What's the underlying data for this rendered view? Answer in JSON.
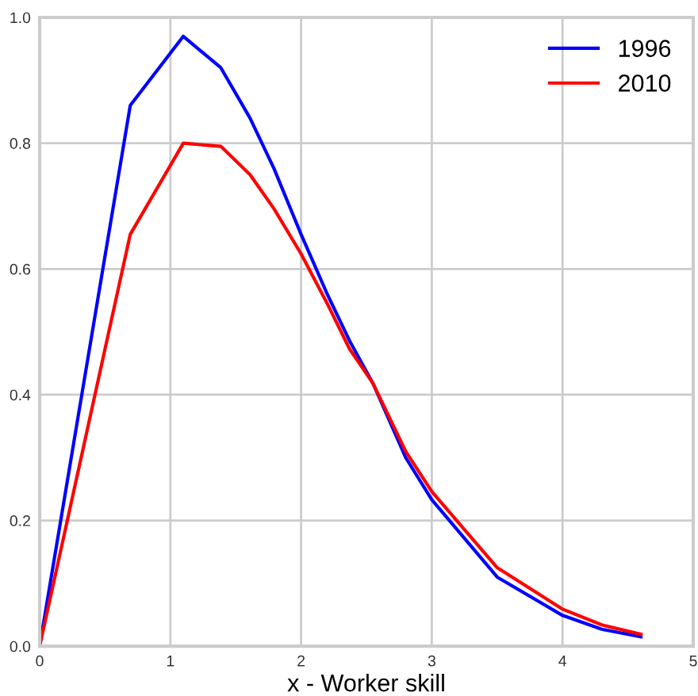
{
  "chart_data": {
    "type": "line",
    "xlabel": "x - Worker skill",
    "series": [
      {
        "name": "1996",
        "color": "#0000ff",
        "x": [
          0,
          0.693,
          1.099,
          1.386,
          1.609,
          1.792,
          2.0,
          2.2,
          2.37,
          2.55,
          2.8,
          3.0,
          3.5,
          4.0,
          4.3,
          4.6
        ],
        "values": [
          0,
          0.86,
          0.97,
          0.92,
          0.84,
          0.76,
          0.655,
          0.56,
          0.486,
          0.418,
          0.3,
          0.233,
          0.11,
          0.049,
          0.027,
          0.015
        ]
      },
      {
        "name": "2010",
        "color": "#ff0000",
        "x": [
          0,
          0.693,
          1.099,
          1.386,
          1.609,
          1.792,
          2.0,
          2.2,
          2.37,
          2.55,
          2.8,
          3.0,
          3.5,
          4.0,
          4.3,
          4.6
        ],
        "values": [
          0,
          0.655,
          0.8,
          0.795,
          0.75,
          0.696,
          0.624,
          0.545,
          0.473,
          0.418,
          0.31,
          0.246,
          0.125,
          0.059,
          0.034,
          0.019
        ]
      }
    ],
    "xlim": [
      0,
      5
    ],
    "ylim": [
      0,
      1.0
    ],
    "xticks": [
      0,
      1,
      2,
      3,
      4,
      5
    ],
    "yticks": [
      {
        "value": 0,
        "label": "0.0"
      },
      {
        "value": 0.2,
        "label": "0.2"
      },
      {
        "value": 0.4,
        "label": "0.4"
      },
      {
        "value": 0.6,
        "label": "0.6"
      },
      {
        "value": 0.8,
        "label": "0.8"
      },
      {
        "value": 1.0,
        "label": "1.0"
      }
    ],
    "grid": true,
    "legend": "top right",
    "line_style": "solid",
    "marker": "none"
  }
}
